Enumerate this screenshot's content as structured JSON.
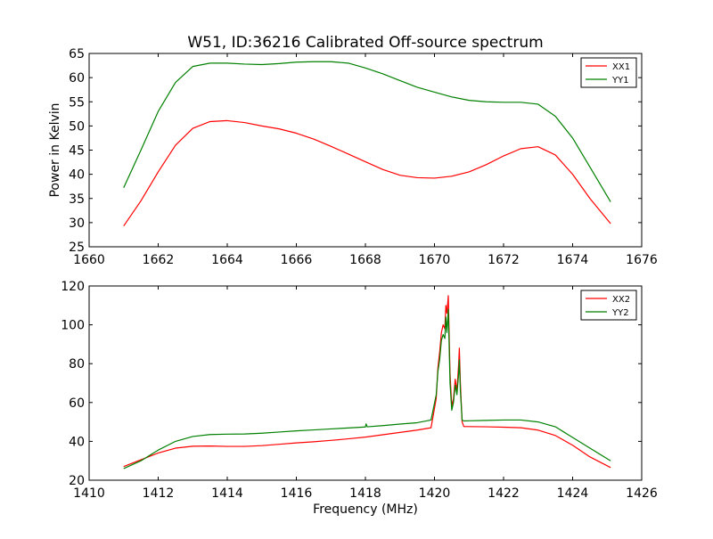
{
  "figure_title": "W51, ID:36216 Calibrated Off-source spectrum",
  "chart_data": [
    {
      "type": "line",
      "title": "W51, ID:36216 Calibrated Off-source spectrum",
      "xlabel": "",
      "ylabel": "Power in Kelvin",
      "xlim": [
        1660,
        1676
      ],
      "ylim": [
        25,
        65
      ],
      "xticks": [
        1660,
        1662,
        1664,
        1666,
        1668,
        1670,
        1672,
        1674,
        1676
      ],
      "yticks": [
        25,
        30,
        35,
        40,
        45,
        50,
        55,
        60,
        65
      ],
      "legend_position": "top-right",
      "grid": false,
      "series": [
        {
          "name": "XX1",
          "color": "#ff0000",
          "x": [
            1661.0,
            1661.5,
            1662.0,
            1662.5,
            1663.0,
            1663.5,
            1664.0,
            1664.5,
            1665.0,
            1665.5,
            1666.0,
            1666.5,
            1667.0,
            1667.5,
            1668.0,
            1668.5,
            1669.0,
            1669.5,
            1670.0,
            1670.5,
            1671.0,
            1671.5,
            1672.0,
            1672.5,
            1673.0,
            1673.5,
            1674.0,
            1674.5,
            1675.1
          ],
          "y": [
            29.3,
            34.5,
            40.5,
            46.0,
            49.5,
            50.9,
            51.1,
            50.7,
            50.0,
            49.4,
            48.5,
            47.3,
            45.8,
            44.2,
            42.6,
            41.0,
            39.8,
            39.3,
            39.2,
            39.6,
            40.5,
            42.0,
            43.8,
            45.3,
            45.7,
            44.0,
            40.0,
            35.0,
            29.8
          ]
        },
        {
          "name": "YY1",
          "color": "#008000",
          "x": [
            1661.0,
            1661.5,
            1662.0,
            1662.5,
            1663.0,
            1663.5,
            1664.0,
            1664.5,
            1665.0,
            1665.5,
            1666.0,
            1666.5,
            1667.0,
            1667.5,
            1668.0,
            1668.5,
            1669.0,
            1669.5,
            1670.0,
            1670.5,
            1671.0,
            1671.5,
            1672.0,
            1672.5,
            1673.0,
            1673.5,
            1674.0,
            1674.5,
            1675.1
          ],
          "y": [
            37.2,
            45.0,
            53.0,
            59.0,
            62.3,
            63.0,
            63.0,
            62.8,
            62.7,
            62.9,
            63.2,
            63.3,
            63.3,
            63.0,
            62.0,
            60.8,
            59.4,
            58.0,
            57.0,
            56.0,
            55.3,
            55.0,
            54.9,
            54.9,
            54.5,
            52.0,
            47.5,
            41.5,
            34.3
          ]
        }
      ]
    },
    {
      "type": "line",
      "title": "",
      "xlabel": "Frequency (MHz)",
      "ylabel": "",
      "xlim": [
        1410,
        1426
      ],
      "ylim": [
        20,
        120
      ],
      "xticks": [
        1410,
        1412,
        1414,
        1416,
        1418,
        1420,
        1422,
        1424,
        1426
      ],
      "yticks": [
        20,
        40,
        60,
        80,
        100,
        120
      ],
      "legend_position": "top-right",
      "grid": false,
      "series": [
        {
          "name": "XX2",
          "color": "#ff0000",
          "x": [
            1411.0,
            1411.5,
            1412.0,
            1412.5,
            1413.0,
            1413.5,
            1414.0,
            1414.5,
            1415.0,
            1415.5,
            1416.0,
            1416.5,
            1417.0,
            1417.5,
            1418.0,
            1418.5,
            1419.0,
            1419.5,
            1419.9,
            1420.05,
            1420.1,
            1420.15,
            1420.2,
            1420.25,
            1420.3,
            1420.33,
            1420.36,
            1420.4,
            1420.45,
            1420.5,
            1420.55,
            1420.6,
            1420.65,
            1420.7,
            1420.72,
            1420.75,
            1420.8,
            1420.85,
            1421.0,
            1421.5,
            1422.0,
            1422.5,
            1423.0,
            1423.5,
            1424.0,
            1424.5,
            1425.1
          ],
          "y": [
            27.0,
            30.5,
            34.0,
            36.5,
            37.5,
            37.6,
            37.4,
            37.4,
            37.8,
            38.5,
            39.2,
            39.8,
            40.5,
            41.3,
            42.2,
            43.4,
            44.6,
            45.8,
            47.0,
            62.0,
            78.0,
            86.0,
            96.0,
            100.0,
            98.0,
            110.0,
            106.0,
            115.0,
            75.0,
            58.0,
            62.0,
            72.0,
            66.0,
            80.0,
            88.0,
            70.0,
            50.0,
            47.6,
            47.6,
            47.5,
            47.3,
            47.0,
            45.8,
            43.0,
            38.0,
            32.0,
            26.5
          ]
        },
        {
          "name": "YY2",
          "color": "#008000",
          "x": [
            1411.0,
            1411.5,
            1412.0,
            1412.5,
            1413.0,
            1413.5,
            1414.0,
            1414.5,
            1415.0,
            1415.5,
            1416.0,
            1416.5,
            1417.0,
            1417.5,
            1418.0,
            1418.02,
            1418.05,
            1418.5,
            1419.0,
            1419.5,
            1419.9,
            1420.05,
            1420.1,
            1420.15,
            1420.2,
            1420.25,
            1420.3,
            1420.33,
            1420.36,
            1420.4,
            1420.45,
            1420.5,
            1420.55,
            1420.6,
            1420.65,
            1420.7,
            1420.72,
            1420.75,
            1420.8,
            1420.85,
            1421.0,
            1421.5,
            1422.0,
            1422.5,
            1423.0,
            1423.5,
            1424.0,
            1424.5,
            1425.1
          ],
          "y": [
            26.0,
            30.0,
            35.5,
            40.0,
            42.5,
            43.5,
            43.7,
            43.8,
            44.2,
            44.8,
            45.4,
            45.9,
            46.4,
            46.9,
            47.4,
            49.0,
            47.5,
            48.1,
            48.9,
            49.6,
            51.0,
            64.0,
            76.0,
            82.0,
            92.0,
            95.0,
            93.0,
            104.0,
            96.0,
            108.0,
            70.0,
            56.0,
            60.0,
            69.0,
            64.0,
            75.0,
            82.0,
            66.0,
            51.0,
            50.5,
            50.6,
            50.8,
            51.0,
            51.0,
            50.0,
            47.5,
            42.0,
            36.5,
            30.0
          ]
        }
      ]
    }
  ]
}
